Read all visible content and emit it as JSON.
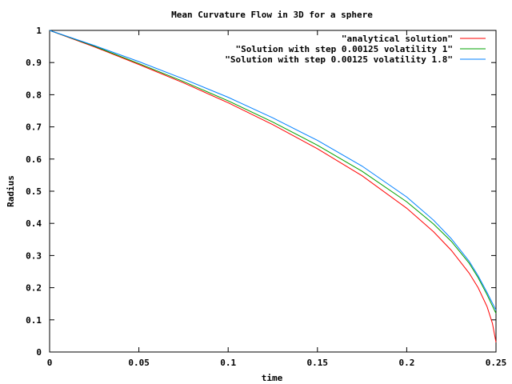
{
  "chart_data": {
    "type": "line",
    "title": "Mean Curvature Flow in  3D for a sphere",
    "xlabel": "time",
    "ylabel": "Radius",
    "xlim": [
      0,
      0.25
    ],
    "ylim": [
      0,
      1
    ],
    "xticks": [
      "0",
      "0.05",
      "0.1",
      "0.15",
      "0.2",
      "0.25"
    ],
    "xtick_values": [
      0,
      0.05,
      0.1,
      0.15,
      0.2,
      0.25
    ],
    "yticks": [
      "0",
      "0.1",
      "0.2",
      "0.3",
      "0.4",
      "0.5",
      "0.6",
      "0.7",
      "0.8",
      "0.9",
      "1"
    ],
    "ytick_values": [
      0,
      0.1,
      0.2,
      0.3,
      0.4,
      0.5,
      0.6,
      0.7,
      0.8,
      0.9,
      1
    ],
    "grid": false,
    "legend_position": "top-right",
    "series": [
      {
        "name": "\"analytical solution\"",
        "color": "#ff0000",
        "x": [
          0,
          0.025,
          0.05,
          0.075,
          0.1,
          0.125,
          0.15,
          0.175,
          0.2,
          0.215,
          0.225,
          0.235,
          0.24,
          0.245,
          0.248,
          0.2495,
          0.25
        ],
        "y": [
          1,
          0.949,
          0.894,
          0.837,
          0.775,
          0.707,
          0.632,
          0.548,
          0.447,
          0.374,
          0.316,
          0.245,
          0.2,
          0.141,
          0.089,
          0.045,
          0.03
        ]
      },
      {
        "name": "\"Solution with step 0.00125 volatility 1\"",
        "color": "#00a000",
        "x": [
          0,
          0.025,
          0.05,
          0.075,
          0.1,
          0.125,
          0.15,
          0.175,
          0.2,
          0.215,
          0.225,
          0.235,
          0.24,
          0.245,
          0.25
        ],
        "y": [
          1,
          0.951,
          0.897,
          0.841,
          0.781,
          0.715,
          0.643,
          0.562,
          0.467,
          0.398,
          0.344,
          0.276,
          0.231,
          0.178,
          0.12
        ]
      },
      {
        "name": "\"Solution with step 0.00125 volatility 1.8\"",
        "color": "#0080ff",
        "x": [
          0,
          0.025,
          0.05,
          0.075,
          0.1,
          0.125,
          0.15,
          0.175,
          0.2,
          0.215,
          0.225,
          0.235,
          0.24,
          0.245,
          0.25
        ],
        "y": [
          1,
          0.953,
          0.903,
          0.849,
          0.792,
          0.728,
          0.658,
          0.578,
          0.482,
          0.41,
          0.352,
          0.282,
          0.237,
          0.185,
          0.13
        ]
      }
    ]
  }
}
